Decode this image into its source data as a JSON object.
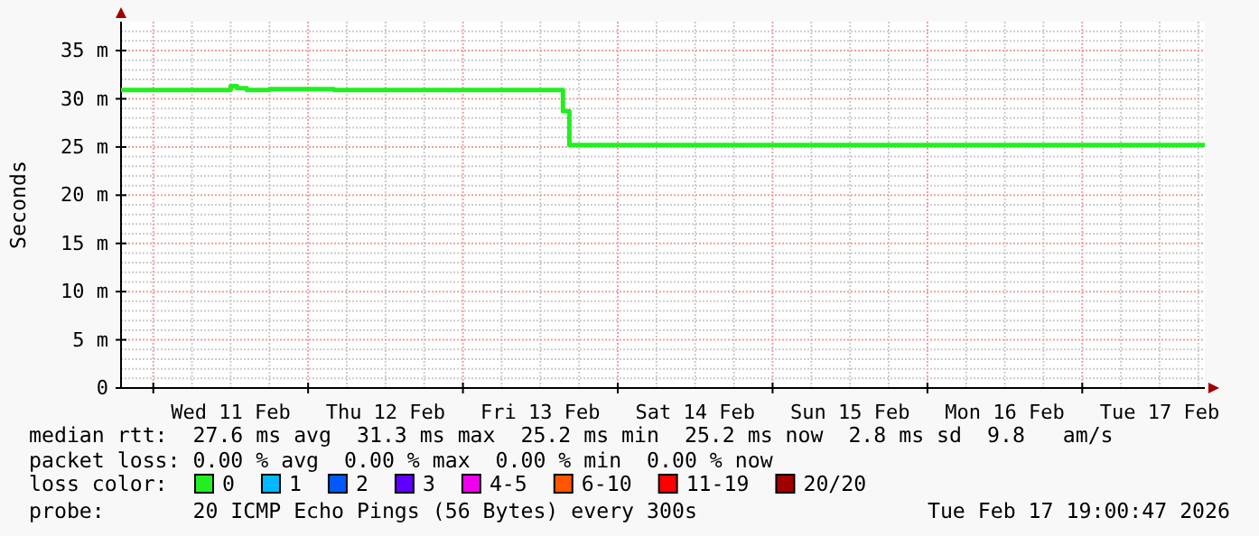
{
  "chart_data": {
    "type": "step",
    "ylabel": "Seconds",
    "legend_title": "loss color:",
    "legend": "bottom",
    "grid": true,
    "xlim": [
      "2026-02-10T19:00",
      "2026-02-17T19:00"
    ],
    "xticks": [
      {
        "value": "2026-02-11T00:00",
        "label": null
      },
      {
        "value": "2026-02-11T06:00",
        "label": null
      },
      {
        "value": "2026-02-11T12:00",
        "label": "Wed 11 Feb"
      },
      {
        "value": "2026-02-11T18:00",
        "label": null
      },
      {
        "value": "2026-02-12T00:00",
        "label": null
      },
      {
        "value": "2026-02-12T06:00",
        "label": null
      },
      {
        "value": "2026-02-12T12:00",
        "label": "Thu 12 Feb"
      },
      {
        "value": "2026-02-12T18:00",
        "label": null
      },
      {
        "value": "2026-02-13T00:00",
        "label": null
      },
      {
        "value": "2026-02-13T06:00",
        "label": null
      },
      {
        "value": "2026-02-13T12:00",
        "label": "Fri 13 Feb"
      },
      {
        "value": "2026-02-13T18:00",
        "label": null
      },
      {
        "value": "2026-02-14T00:00",
        "label": null
      },
      {
        "value": "2026-02-14T06:00",
        "label": null
      },
      {
        "value": "2026-02-14T12:00",
        "label": "Sat 14 Feb"
      },
      {
        "value": "2026-02-14T18:00",
        "label": null
      },
      {
        "value": "2026-02-15T00:00",
        "label": null
      },
      {
        "value": "2026-02-15T06:00",
        "label": null
      },
      {
        "value": "2026-02-15T12:00",
        "label": "Sun 15 Feb"
      },
      {
        "value": "2026-02-15T18:00",
        "label": null
      },
      {
        "value": "2026-02-16T00:00",
        "label": null
      },
      {
        "value": "2026-02-16T06:00",
        "label": null
      },
      {
        "value": "2026-02-16T12:00",
        "label": "Mon 16 Feb"
      },
      {
        "value": "2026-02-16T18:00",
        "label": null
      },
      {
        "value": "2026-02-17T00:00",
        "label": null
      },
      {
        "value": "2026-02-17T06:00",
        "label": null
      },
      {
        "value": "2026-02-17T12:00",
        "label": "Tue 17 Feb"
      },
      {
        "value": "2026-02-17T18:00",
        "label": null
      }
    ],
    "ylim": [
      0,
      38
    ],
    "yticks": [
      {
        "value": 0,
        "label": "0"
      },
      {
        "value": 1,
        "label": null
      },
      {
        "value": 2,
        "label": null
      },
      {
        "value": 3,
        "label": null
      },
      {
        "value": 4,
        "label": null
      },
      {
        "value": 5,
        "label": "5 m"
      },
      {
        "value": 6,
        "label": null
      },
      {
        "value": 7,
        "label": null
      },
      {
        "value": 8,
        "label": null
      },
      {
        "value": 9,
        "label": null
      },
      {
        "value": 10,
        "label": "10 m"
      },
      {
        "value": 11,
        "label": null
      },
      {
        "value": 12,
        "label": null
      },
      {
        "value": 13,
        "label": null
      },
      {
        "value": 14,
        "label": null
      },
      {
        "value": 15,
        "label": "15 m"
      },
      {
        "value": 16,
        "label": null
      },
      {
        "value": 17,
        "label": null
      },
      {
        "value": 18,
        "label": null
      },
      {
        "value": 19,
        "label": null
      },
      {
        "value": 20,
        "label": "20 m"
      },
      {
        "value": 21,
        "label": null
      },
      {
        "value": 22,
        "label": null
      },
      {
        "value": 23,
        "label": null
      },
      {
        "value": 24,
        "label": null
      },
      {
        "value": 25,
        "label": "25 m"
      },
      {
        "value": 26,
        "label": null
      },
      {
        "value": 27,
        "label": null
      },
      {
        "value": 28,
        "label": null
      },
      {
        "value": 29,
        "label": null
      },
      {
        "value": 30,
        "label": "30 m"
      },
      {
        "value": 31,
        "label": null
      },
      {
        "value": 32,
        "label": null
      },
      {
        "value": 33,
        "label": null
      },
      {
        "value": 34,
        "label": null
      },
      {
        "value": 35,
        "label": "35 m"
      },
      {
        "value": 36,
        "label": null
      },
      {
        "value": 37,
        "label": null
      }
    ],
    "x": [
      "2026-02-10T19:00",
      "2026-02-11T12:00",
      "2026-02-11T13:00",
      "2026-02-11T14:30",
      "2026-02-11T18:00",
      "2026-02-12T04:00",
      "2026-02-13T15:30",
      "2026-02-13T16:30",
      "2026-02-17T19:00"
    ],
    "series": [
      {
        "name": "0",
        "color": "#22ee22",
        "values": [
          30.9,
          31.3,
          31.1,
          30.9,
          31.0,
          30.9,
          28.7,
          25.2,
          25.2
        ]
      },
      {
        "name": "1",
        "color": "#00b8ff",
        "values": [
          null,
          null,
          null,
          null,
          null,
          null,
          null,
          null,
          null
        ]
      },
      {
        "name": "2",
        "color": "#0059ff",
        "values": [
          null,
          null,
          null,
          null,
          null,
          null,
          null,
          null,
          null
        ]
      },
      {
        "name": "3",
        "color": "#5e00ff",
        "values": [
          null,
          null,
          null,
          null,
          null,
          null,
          null,
          null,
          null
        ]
      },
      {
        "name": "4-5",
        "color": "#ee00ee",
        "values": [
          null,
          null,
          null,
          null,
          null,
          null,
          null,
          null,
          null
        ]
      },
      {
        "name": "6-10",
        "color": "#ff5500",
        "values": [
          null,
          null,
          null,
          null,
          null,
          null,
          null,
          null,
          null
        ]
      },
      {
        "name": "11-19",
        "color": "#ff0000",
        "values": [
          null,
          null,
          null,
          null,
          null,
          null,
          null,
          null,
          null
        ]
      },
      {
        "name": "20/20",
        "color": "#a10000",
        "values": [
          null,
          null,
          null,
          null,
          null,
          null,
          null,
          null,
          null
        ]
      }
    ],
    "annotations": [
      "median rtt:  27.6 ms avg  31.3 ms max  25.2 ms min  25.2 ms now  2.8 ms sd  9.8   am/s",
      "packet loss: 0.00 % avg  0.00 % max  0.00 % min  0.00 % now",
      "probe:       20 ICMP Echo Pings (56 Bytes) every 300s",
      "Tue Feb 17 19:00:47 2026"
    ]
  }
}
